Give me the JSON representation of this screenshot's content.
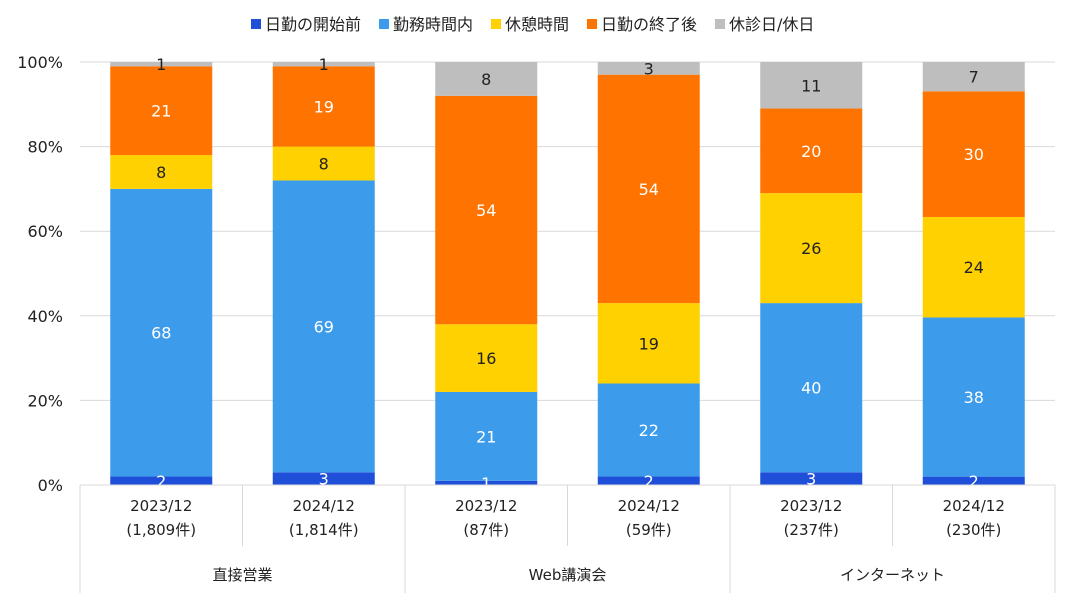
{
  "chart_data": {
    "type": "bar",
    "stacked": true,
    "percent": true,
    "groups": [
      {
        "name": "直接営業",
        "span": 2
      },
      {
        "name": "Web講演会",
        "span": 2
      },
      {
        "name": "インターネット",
        "span": 2
      }
    ],
    "categories": [
      {
        "period": "2023/12",
        "count": "(1,809件)"
      },
      {
        "period": "2024/12",
        "count": "(1,814件)"
      },
      {
        "period": "2023/12",
        "count": "(87件)"
      },
      {
        "period": "2024/12",
        "count": "(59件)"
      },
      {
        "period": "2023/12",
        "count": "(237件)"
      },
      {
        "period": "2024/12",
        "count": "(230件)"
      }
    ],
    "series": [
      {
        "name": "日勤の開始前",
        "color": "#1F4FD8",
        "label_color": "#ffffff",
        "values": [
          2,
          3,
          1,
          2,
          3,
          2
        ]
      },
      {
        "name": "勤務時間内",
        "color": "#3D9BEC",
        "label_color": "#ffffff",
        "values": [
          68,
          69,
          21,
          22,
          40,
          38
        ]
      },
      {
        "name": "休憩時間",
        "color": "#FFD100",
        "label_color": "#222222",
        "values": [
          8,
          8,
          16,
          19,
          26,
          24
        ]
      },
      {
        "name": "日勤の終了後",
        "color": "#FF7300",
        "label_color": "#ffffff",
        "values": [
          21,
          19,
          54,
          54,
          20,
          30
        ]
      },
      {
        "name": "休診日/休日",
        "color": "#BEBEBE",
        "label_color": "#222222",
        "values": [
          1,
          1,
          8,
          3,
          11,
          7
        ]
      }
    ],
    "y_ticks": [
      "0%",
      "20%",
      "40%",
      "60%",
      "80%",
      "100%"
    ],
    "ylim": [
      0,
      100
    ],
    "legend_position": "top",
    "grid": true
  }
}
